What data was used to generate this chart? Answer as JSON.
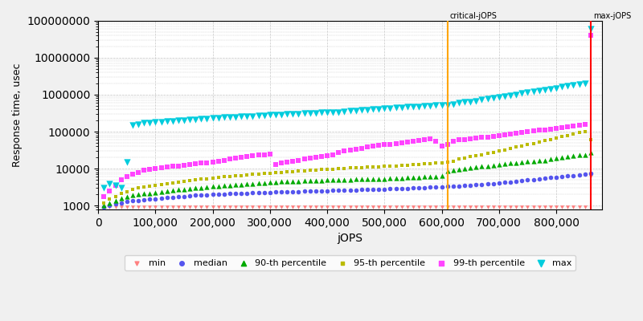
{
  "xlabel": "jOPS",
  "ylabel": "Response time, usec",
  "xlim": [
    0,
    880000
  ],
  "ylim_log": [
    800,
    100000000
  ],
  "critical_jops": 610000,
  "max_jops": 860000,
  "critical_label": "critical-jOPS",
  "max_label": "max-jOPS",
  "critical_color": "#FFA500",
  "max_color": "#FF0000",
  "background_color": "#f0f0f0",
  "plot_bg_color": "#ffffff",
  "grid_color": "#c8c8c8",
  "series": {
    "min": {
      "color": "#FF8080",
      "marker": "v",
      "markersize": 3.5,
      "label": "min",
      "data_x": [
        10000,
        20000,
        30000,
        40000,
        50000,
        60000,
        70000,
        80000,
        90000,
        100000,
        110000,
        120000,
        130000,
        140000,
        150000,
        160000,
        170000,
        180000,
        190000,
        200000,
        210000,
        220000,
        230000,
        240000,
        250000,
        260000,
        270000,
        280000,
        290000,
        300000,
        310000,
        320000,
        330000,
        340000,
        350000,
        360000,
        370000,
        380000,
        390000,
        400000,
        410000,
        420000,
        430000,
        440000,
        450000,
        460000,
        470000,
        480000,
        490000,
        500000,
        510000,
        520000,
        530000,
        540000,
        550000,
        560000,
        570000,
        580000,
        590000,
        600000,
        610000,
        620000,
        630000,
        640000,
        650000,
        660000,
        670000,
        680000,
        690000,
        700000,
        710000,
        720000,
        730000,
        740000,
        750000,
        760000,
        770000,
        780000,
        790000,
        800000,
        810000,
        820000,
        830000,
        840000,
        850000,
        860000
      ],
      "data_y": [
        900,
        900,
        900,
        900,
        900,
        900,
        900,
        900,
        900,
        900,
        900,
        900,
        900,
        900,
        900,
        900,
        900,
        900,
        900,
        900,
        900,
        900,
        900,
        900,
        900,
        900,
        900,
        900,
        900,
        900,
        900,
        900,
        900,
        900,
        900,
        900,
        900,
        900,
        900,
        900,
        900,
        900,
        900,
        900,
        900,
        900,
        900,
        900,
        900,
        900,
        900,
        900,
        900,
        900,
        900,
        900,
        900,
        900,
        900,
        900,
        900,
        900,
        900,
        900,
        900,
        900,
        900,
        900,
        900,
        900,
        900,
        900,
        900,
        900,
        900,
        900,
        900,
        900,
        900,
        900,
        900,
        900,
        900,
        900,
        900,
        6000
      ]
    },
    "median": {
      "color": "#5555EE",
      "marker": "o",
      "markersize": 4,
      "label": "median",
      "data_x": [
        10000,
        20000,
        30000,
        40000,
        50000,
        60000,
        70000,
        80000,
        90000,
        100000,
        110000,
        120000,
        130000,
        140000,
        150000,
        160000,
        170000,
        180000,
        190000,
        200000,
        210000,
        220000,
        230000,
        240000,
        250000,
        260000,
        270000,
        280000,
        290000,
        300000,
        310000,
        320000,
        330000,
        340000,
        350000,
        360000,
        370000,
        380000,
        390000,
        400000,
        410000,
        420000,
        430000,
        440000,
        450000,
        460000,
        470000,
        480000,
        490000,
        500000,
        510000,
        520000,
        530000,
        540000,
        550000,
        560000,
        570000,
        580000,
        590000,
        600000,
        610000,
        620000,
        630000,
        640000,
        650000,
        660000,
        670000,
        680000,
        690000,
        700000,
        710000,
        720000,
        730000,
        740000,
        750000,
        760000,
        770000,
        780000,
        790000,
        800000,
        810000,
        820000,
        830000,
        840000,
        850000,
        860000
      ],
      "data_y": [
        900,
        1000,
        1100,
        1200,
        1300,
        1350,
        1400,
        1450,
        1500,
        1550,
        1600,
        1650,
        1700,
        1750,
        1800,
        1850,
        1900,
        1920,
        1950,
        2000,
        2050,
        2080,
        2100,
        2150,
        2180,
        2200,
        2230,
        2250,
        2280,
        2300,
        2320,
        2350,
        2380,
        2400,
        2420,
        2450,
        2470,
        2500,
        2520,
        2550,
        2580,
        2600,
        2630,
        2650,
        2680,
        2700,
        2730,
        2750,
        2780,
        2800,
        2830,
        2850,
        2900,
        2950,
        3000,
        3050,
        3100,
        3150,
        3200,
        3250,
        3300,
        3350,
        3400,
        3500,
        3600,
        3700,
        3800,
        3900,
        4000,
        4100,
        4250,
        4400,
        4550,
        4700,
        4900,
        5100,
        5300,
        5500,
        5700,
        5900,
        6100,
        6400,
        6600,
        6900,
        7100,
        7500
      ]
    },
    "p90": {
      "color": "#00AA00",
      "marker": "^",
      "markersize": 4.5,
      "label": "90-th percentile",
      "data_x": [
        10000,
        20000,
        30000,
        40000,
        50000,
        60000,
        70000,
        80000,
        90000,
        100000,
        110000,
        120000,
        130000,
        140000,
        150000,
        160000,
        170000,
        180000,
        190000,
        200000,
        210000,
        220000,
        230000,
        240000,
        250000,
        260000,
        270000,
        280000,
        290000,
        300000,
        310000,
        320000,
        330000,
        340000,
        350000,
        360000,
        370000,
        380000,
        390000,
        400000,
        410000,
        420000,
        430000,
        440000,
        450000,
        460000,
        470000,
        480000,
        490000,
        500000,
        510000,
        520000,
        530000,
        540000,
        550000,
        560000,
        570000,
        580000,
        590000,
        600000,
        610000,
        620000,
        630000,
        640000,
        650000,
        660000,
        670000,
        680000,
        690000,
        700000,
        710000,
        720000,
        730000,
        740000,
        750000,
        760000,
        770000,
        780000,
        790000,
        800000,
        810000,
        820000,
        830000,
        840000,
        850000,
        860000
      ],
      "data_y": [
        1000,
        1200,
        1400,
        1600,
        1800,
        1900,
        2000,
        2100,
        2200,
        2300,
        2400,
        2500,
        2600,
        2700,
        2800,
        2900,
        3000,
        3100,
        3200,
        3300,
        3400,
        3500,
        3600,
        3700,
        3800,
        3900,
        4000,
        4100,
        4200,
        4300,
        4400,
        4500,
        4550,
        4600,
        4650,
        4700,
        4750,
        4800,
        4850,
        4900,
        4950,
        5000,
        5050,
        5100,
        5150,
        5200,
        5250,
        5300,
        5350,
        5400,
        5450,
        5500,
        5600,
        5700,
        5800,
        5900,
        6000,
        6100,
        6200,
        6300,
        8500,
        9000,
        9500,
        10000,
        10500,
        11000,
        11500,
        12000,
        12500,
        13000,
        13500,
        14000,
        14500,
        15000,
        15500,
        16000,
        16500,
        17000,
        18000,
        19000,
        20000,
        21000,
        22000,
        23000,
        24000,
        27000
      ]
    },
    "p95": {
      "color": "#BBBB00",
      "marker": "s",
      "markersize": 3.5,
      "label": "95-th percentile",
      "data_x": [
        10000,
        20000,
        30000,
        40000,
        50000,
        60000,
        70000,
        80000,
        90000,
        100000,
        110000,
        120000,
        130000,
        140000,
        150000,
        160000,
        170000,
        180000,
        190000,
        200000,
        210000,
        220000,
        230000,
        240000,
        250000,
        260000,
        270000,
        280000,
        290000,
        300000,
        310000,
        320000,
        330000,
        340000,
        350000,
        360000,
        370000,
        380000,
        390000,
        400000,
        410000,
        420000,
        430000,
        440000,
        450000,
        460000,
        470000,
        480000,
        490000,
        500000,
        510000,
        520000,
        530000,
        540000,
        550000,
        560000,
        570000,
        580000,
        590000,
        600000,
        610000,
        620000,
        630000,
        640000,
        650000,
        660000,
        670000,
        680000,
        690000,
        700000,
        710000,
        720000,
        730000,
        740000,
        750000,
        760000,
        770000,
        780000,
        790000,
        800000,
        810000,
        820000,
        830000,
        840000,
        850000,
        860000
      ],
      "data_y": [
        1200,
        1500,
        1800,
        2100,
        2400,
        2700,
        3000,
        3200,
        3400,
        3600,
        3800,
        4000,
        4200,
        4400,
        4600,
        4800,
        5000,
        5200,
        5400,
        5600,
        5800,
        6000,
        6200,
        6400,
        6600,
        6800,
        7000,
        7200,
        7400,
        7600,
        7800,
        8000,
        8200,
        8400,
        8600,
        8800,
        9000,
        9200,
        9400,
        9600,
        9800,
        10000,
        10200,
        10400,
        10600,
        10800,
        11000,
        11200,
        11400,
        11600,
        11800,
        12000,
        12300,
        12600,
        12900,
        13200,
        13500,
        13800,
        14100,
        14400,
        14700,
        16000,
        18000,
        19500,
        21000,
        22500,
        24000,
        26000,
        28000,
        30000,
        32000,
        35000,
        38000,
        41000,
        44000,
        48000,
        52000,
        57000,
        62000,
        68000,
        74000,
        80000,
        87000,
        93000,
        100000,
        60000
      ]
    },
    "p99": {
      "color": "#FF44FF",
      "marker": "s",
      "markersize": 5,
      "label": "99-th percentile",
      "data_x": [
        10000,
        20000,
        30000,
        40000,
        50000,
        60000,
        70000,
        80000,
        90000,
        100000,
        110000,
        120000,
        130000,
        140000,
        150000,
        160000,
        170000,
        180000,
        190000,
        200000,
        210000,
        220000,
        230000,
        240000,
        250000,
        260000,
        270000,
        280000,
        290000,
        300000,
        310000,
        320000,
        330000,
        340000,
        350000,
        360000,
        370000,
        380000,
        390000,
        400000,
        410000,
        420000,
        430000,
        440000,
        450000,
        460000,
        470000,
        480000,
        490000,
        500000,
        510000,
        520000,
        530000,
        540000,
        550000,
        560000,
        570000,
        580000,
        590000,
        600000,
        610000,
        620000,
        630000,
        640000,
        650000,
        660000,
        670000,
        680000,
        690000,
        700000,
        710000,
        720000,
        730000,
        740000,
        750000,
        760000,
        770000,
        780000,
        790000,
        800000,
        810000,
        820000,
        830000,
        840000,
        850000,
        860000
      ],
      "data_y": [
        1800,
        2500,
        3500,
        5000,
        6000,
        7000,
        8000,
        9000,
        9500,
        10000,
        10500,
        11000,
        11500,
        12000,
        12500,
        13000,
        13500,
        14000,
        14500,
        15000,
        16000,
        17000,
        18000,
        19000,
        20000,
        21000,
        22000,
        23000,
        24000,
        25000,
        13000,
        14000,
        15000,
        16000,
        17000,
        18000,
        19000,
        20000,
        21000,
        22000,
        24000,
        27000,
        30000,
        32000,
        34000,
        36000,
        38000,
        40000,
        42000,
        44000,
        46000,
        48000,
        50000,
        52000,
        55000,
        58000,
        61000,
        65000,
        55000,
        40000,
        45000,
        55000,
        60000,
        62000,
        65000,
        68000,
        70000,
        72000,
        75000,
        78000,
        82000,
        86000,
        90000,
        94000,
        98000,
        103000,
        108000,
        113000,
        118000,
        124000,
        130000,
        136000,
        142000,
        148000,
        155000,
        40000000
      ]
    },
    "max": {
      "color": "#00CCDD",
      "marker": "v",
      "markersize": 6,
      "label": "max",
      "data_x": [
        10000,
        20000,
        30000,
        40000,
        50000,
        60000,
        70000,
        80000,
        90000,
        100000,
        110000,
        120000,
        130000,
        140000,
        150000,
        160000,
        170000,
        180000,
        190000,
        200000,
        210000,
        220000,
        230000,
        240000,
        250000,
        260000,
        270000,
        280000,
        290000,
        300000,
        310000,
        320000,
        330000,
        340000,
        350000,
        360000,
        370000,
        380000,
        390000,
        400000,
        410000,
        420000,
        430000,
        440000,
        450000,
        460000,
        470000,
        480000,
        490000,
        500000,
        510000,
        520000,
        530000,
        540000,
        550000,
        560000,
        570000,
        580000,
        590000,
        600000,
        610000,
        620000,
        630000,
        640000,
        650000,
        660000,
        670000,
        680000,
        690000,
        700000,
        710000,
        720000,
        730000,
        740000,
        750000,
        760000,
        770000,
        780000,
        790000,
        800000,
        810000,
        820000,
        830000,
        840000,
        850000,
        860000
      ],
      "data_y": [
        3000,
        4000,
        3500,
        3000,
        15000,
        150000,
        160000,
        170000,
        175000,
        180000,
        185000,
        190000,
        195000,
        200000,
        205000,
        210000,
        215000,
        220000,
        225000,
        230000,
        235000,
        240000,
        245000,
        250000,
        255000,
        260000,
        265000,
        270000,
        275000,
        280000,
        285000,
        290000,
        295000,
        300000,
        305000,
        310000,
        315000,
        320000,
        325000,
        330000,
        335000,
        340000,
        350000,
        360000,
        370000,
        380000,
        390000,
        400000,
        410000,
        420000,
        430000,
        440000,
        450000,
        460000,
        470000,
        480000,
        490000,
        500000,
        510000,
        520000,
        530000,
        560000,
        590000,
        620000,
        650000,
        680000,
        720000,
        760000,
        810000,
        860000,
        910000,
        960000,
        1020000,
        1080000,
        1140000,
        1200000,
        1270000,
        1350000,
        1430000,
        1520000,
        1610000,
        1700000,
        1800000,
        1900000,
        2000000,
        60000000
      ]
    }
  }
}
